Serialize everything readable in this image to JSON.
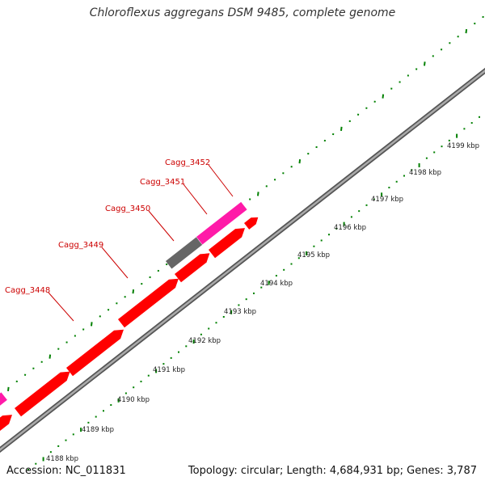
{
  "title": "Chloroflexus aggregans DSM 9485, complete genome",
  "footer": {
    "accession": "Accession: NC_011831",
    "summary": "Topology: circular; Length: 4,684,931 bp; Genes: 3,787"
  },
  "colors": {
    "gene_forward": "#ff0000",
    "gene_pseudo": "#ff1aa8",
    "gene_unknown": "#666666",
    "backbone": "#888888",
    "ticks": "#008000",
    "label": "#cc0000"
  },
  "scale_labels": [
    "4188 kbp",
    "4189 kbp",
    "4190 kbp",
    "4191 kbp",
    "4192 kbp",
    "4193 kbp",
    "4194 kbp",
    "4195 kbp",
    "4196 kbp",
    "4197 kbp",
    "4198 kbp",
    "4199 kbp"
  ],
  "gene_labels": [
    "Cagg_3448",
    "Cagg_3449",
    "Cagg_3450",
    "Cagg_3451",
    "Cagg_3452"
  ]
}
